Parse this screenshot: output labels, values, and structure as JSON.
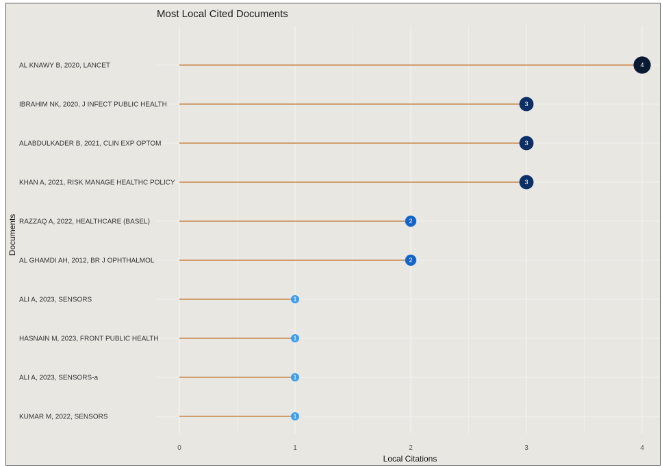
{
  "chart_data": {
    "type": "lollipop",
    "title": "Most Local Cited Documents",
    "xlabel": "Local Citations",
    "ylabel": "Documents",
    "xlim": [
      0,
      4
    ],
    "x_ticks": [
      "0",
      "1",
      "2",
      "3",
      "4"
    ],
    "grid": true,
    "categories": [
      "AL KNAWY B, 2020, LANCET",
      "IBRAHIM NK, 2020, J INFECT PUBLIC HEALTH",
      "ALABDULKADER B, 2021, CLIN EXP OPTOM",
      "KHAN A, 2021, RISK MANAGE HEALTHC POLICY",
      "RAZZAQ A, 2022, HEALTHCARE (BASEL)",
      "AL GHAMDI AH, 2012, BR J OPHTHALMOL",
      "ALI A, 2023, SENSORS",
      "HASNAIN M, 2023, FRONT PUBLIC HEALTH",
      "ALI A, 2023, SENSORS-a",
      "KUMAR M, 2022, SENSORS"
    ],
    "values": [
      4,
      3,
      3,
      3,
      2,
      2,
      1,
      1,
      1,
      1
    ],
    "value_labels": [
      "4",
      "3",
      "3",
      "3",
      "2",
      "2",
      "1",
      "1",
      "1",
      "1"
    ],
    "colors": {
      "background": "#e9e7e2",
      "grid": "#f4f2ee",
      "stem": "#c8874a",
      "value_4": "#0b1a33",
      "value_3": "#0c2f66",
      "value_2": "#1565c8",
      "value_1": "#3a9ff0"
    }
  }
}
